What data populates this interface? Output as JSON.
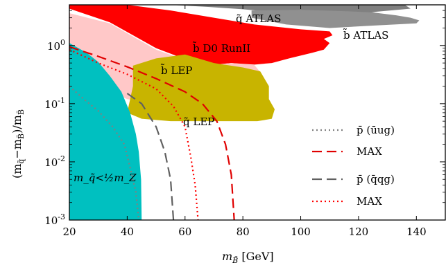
{
  "chart_data": {
    "type": "area",
    "xlabel_main": "m",
    "xlabel_sub": "B̃",
    "xlabel_unit": " [GeV]",
    "ylabel_text": "(m",
    "ylabel_parts": [
      "(m",
      "q̃",
      "−m",
      "B̃",
      ")/m",
      "B̃"
    ],
    "x_ticks": [
      "20",
      "40",
      "60",
      "80",
      "100",
      "120",
      "140"
    ],
    "y_ticks": [
      {
        "base": "10",
        "exp": "-3",
        "value": 0.001
      },
      {
        "base": "10",
        "exp": "-2",
        "value": 0.01
      },
      {
        "base": "10",
        "exp": "-1",
        "value": 0.1
      },
      {
        "base": "10",
        "exp": "0",
        "value": 1
      }
    ],
    "xlim": [
      20,
      150
    ],
    "ylim": [
      0.001,
      5
    ],
    "yscale": "log",
    "grid": false,
    "regions": [
      {
        "label": "q̃ ATLAS",
        "color": "#808080",
        "points": [
          [
            50,
            5
          ],
          [
            136,
            5
          ],
          [
            138,
            4.3
          ],
          [
            126,
            3.8
          ],
          [
            118,
            3.3
          ],
          [
            106,
            3.0
          ],
          [
            100,
            3.2
          ],
          [
            92,
            3.7
          ],
          [
            80,
            4.2
          ],
          [
            68,
            4.6
          ],
          [
            55,
            5
          ]
        ]
      },
      {
        "label": "b̃ ATLAS",
        "color": "#909090",
        "points": [
          [
            83,
            4.0
          ],
          [
            100,
            4.1
          ],
          [
            115,
            3.9
          ],
          [
            125,
            3.7
          ],
          [
            133,
            3.3
          ],
          [
            138,
            3.0
          ],
          [
            141,
            2.7
          ],
          [
            140,
            2.4
          ],
          [
            125,
            2.2
          ],
          [
            110,
            2.0
          ],
          [
            95,
            2.3
          ],
          [
            83,
            3.0
          ]
        ]
      },
      {
        "label": "b̃ D0 RunII",
        "color": "#ff0000",
        "points": [
          [
            20,
            5
          ],
          [
            40,
            5
          ],
          [
            55,
            4.0
          ],
          [
            70,
            3.0
          ],
          [
            84,
            2.3
          ],
          [
            100,
            1.9
          ],
          [
            110,
            1.75
          ],
          [
            111,
            1.5
          ],
          [
            108,
            1.3
          ],
          [
            110,
            1.1
          ],
          [
            108,
            0.85
          ],
          [
            104,
            0.75
          ],
          [
            96,
            0.6
          ],
          [
            90,
            0.5
          ],
          [
            84,
            0.47
          ],
          [
            76,
            0.5
          ],
          [
            66,
            0.45
          ],
          [
            50,
            0.9
          ],
          [
            34,
            2.5
          ],
          [
            20,
            4.3
          ]
        ]
      },
      {
        "label": "b̃ LEP",
        "color": "#ffc8c8",
        "points": [
          [
            20,
            3.6
          ],
          [
            34,
            2.4
          ],
          [
            50,
            0.85
          ],
          [
            66,
            0.44
          ],
          [
            76,
            0.5
          ],
          [
            84,
            0.46
          ],
          [
            86,
            0.35
          ],
          [
            86,
            0.25
          ],
          [
            85,
            0.15
          ],
          [
            84,
            0.1
          ],
          [
            80,
            0.075
          ],
          [
            60,
            0.09
          ],
          [
            40,
            0.12
          ],
          [
            30,
            0.2
          ],
          [
            20,
            0.35
          ]
        ]
      },
      {
        "label": "q̃ LEP",
        "color": "#c8b400",
        "points": [
          [
            42,
            0.45
          ],
          [
            50,
            0.6
          ],
          [
            60,
            0.7
          ],
          [
            70,
            0.5
          ],
          [
            80,
            0.42
          ],
          [
            86,
            0.36
          ],
          [
            89,
            0.2
          ],
          [
            89,
            0.12
          ],
          [
            91,
            0.08
          ],
          [
            90,
            0.055
          ],
          [
            85,
            0.05
          ],
          [
            70,
            0.05
          ],
          [
            55,
            0.05
          ],
          [
            45,
            0.055
          ],
          [
            40,
            0.07
          ],
          [
            42,
            0.2
          ]
        ]
      },
      {
        "label": "m_q̃ < 1/2 m_Z",
        "color": "#00c0c0",
        "points": [
          [
            20,
            1.1
          ],
          [
            26,
            0.75
          ],
          [
            30,
            0.52
          ],
          [
            34,
            0.3
          ],
          [
            38,
            0.16
          ],
          [
            41,
            0.07
          ],
          [
            43,
            0.03
          ],
          [
            44,
            0.015
          ],
          [
            44.8,
            0.005
          ],
          [
            45,
            0.001
          ],
          [
            20,
            0.001
          ]
        ]
      }
    ],
    "curves": [
      {
        "name": "p̄ (ūug)",
        "style": "dotted",
        "color": "#808080",
        "points": [
          [
            20,
            0.2
          ],
          [
            25,
            0.12
          ],
          [
            30,
            0.075
          ],
          [
            35,
            0.04
          ],
          [
            39,
            0.02
          ],
          [
            41,
            0.008
          ],
          [
            43,
            0.003
          ],
          [
            44,
            0.001
          ]
        ]
      },
      {
        "name": "MAX",
        "style": "dashed",
        "color": "#e00000",
        "points": [
          [
            20,
            0.95
          ],
          [
            30,
            0.65
          ],
          [
            40,
            0.43
          ],
          [
            50,
            0.27
          ],
          [
            60,
            0.16
          ],
          [
            66,
            0.1
          ],
          [
            71,
            0.05
          ],
          [
            74,
            0.02
          ],
          [
            76,
            0.006
          ],
          [
            77,
            0.001
          ]
        ]
      },
      {
        "name": "p̄ (q̄qg)",
        "style": "dashed",
        "color": "#606060",
        "points": [
          [
            40,
            0.15
          ],
          [
            45,
            0.1
          ],
          [
            50,
            0.04
          ],
          [
            53,
            0.015
          ],
          [
            55,
            0.005
          ],
          [
            56,
            0.001
          ]
        ]
      },
      {
        "name": "MAX",
        "style": "dotted",
        "color": "#ff0000",
        "points": [
          [
            20,
            0.85
          ],
          [
            30,
            0.5
          ],
          [
            40,
            0.32
          ],
          [
            50,
            0.18
          ],
          [
            56,
            0.09
          ],
          [
            60,
            0.04
          ],
          [
            62,
            0.012
          ],
          [
            63.5,
            0.004
          ],
          [
            64.5,
            0.001
          ]
        ]
      }
    ],
    "legend_position": "lower-right",
    "annotations": [
      {
        "text": "q̃ ATLAS"
      },
      {
        "text": "b̃ ATLAS"
      },
      {
        "text": "b̃ D0 RunII"
      },
      {
        "text": "b̃ LEP"
      },
      {
        "text": "q̃ LEP"
      },
      {
        "text": "m_q̃<½m_Z"
      }
    ]
  }
}
